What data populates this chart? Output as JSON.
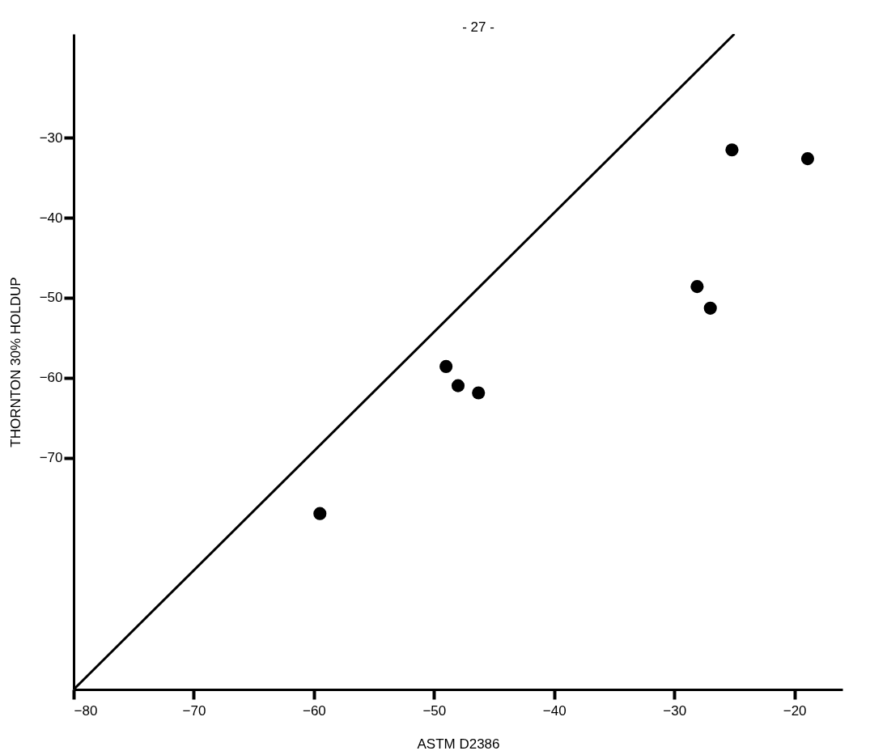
{
  "chart_data": {
    "type": "scatter",
    "xlabel": "ASTM D2386",
    "ylabel": "THORNTON 30% HOLDUP",
    "annotations": [
      "- 27 -"
    ],
    "xlim": [
      -80,
      -16
    ],
    "xticks": [
      -80,
      -70,
      -60,
      -50,
      -40,
      -30,
      -20
    ],
    "ylim": [
      -99,
      -17
    ],
    "yticks": [
      -30,
      -40,
      -50,
      -60,
      -70
    ],
    "series": [
      {
        "type": "line",
        "color": "#000000",
        "x": [
          -80,
          -25.0
        ],
        "values": [
          -99,
          -17
        ],
        "line_style": "solid"
      },
      {
        "color": "#000000",
        "marker": "circle",
        "x": [
          -25.2,
          -18.9,
          -28.1,
          -27.0
        ],
        "values": [
          -31.5,
          -32.6,
          -48.6,
          -51.3
        ]
      },
      {
        "color": "#000000",
        "marker": "circle",
        "x": [
          -49.0,
          -48.0,
          -46.3,
          -59.5
        ],
        "values": [
          -58.6,
          -61.0,
          -61.9,
          -77.0
        ]
      }
    ]
  }
}
